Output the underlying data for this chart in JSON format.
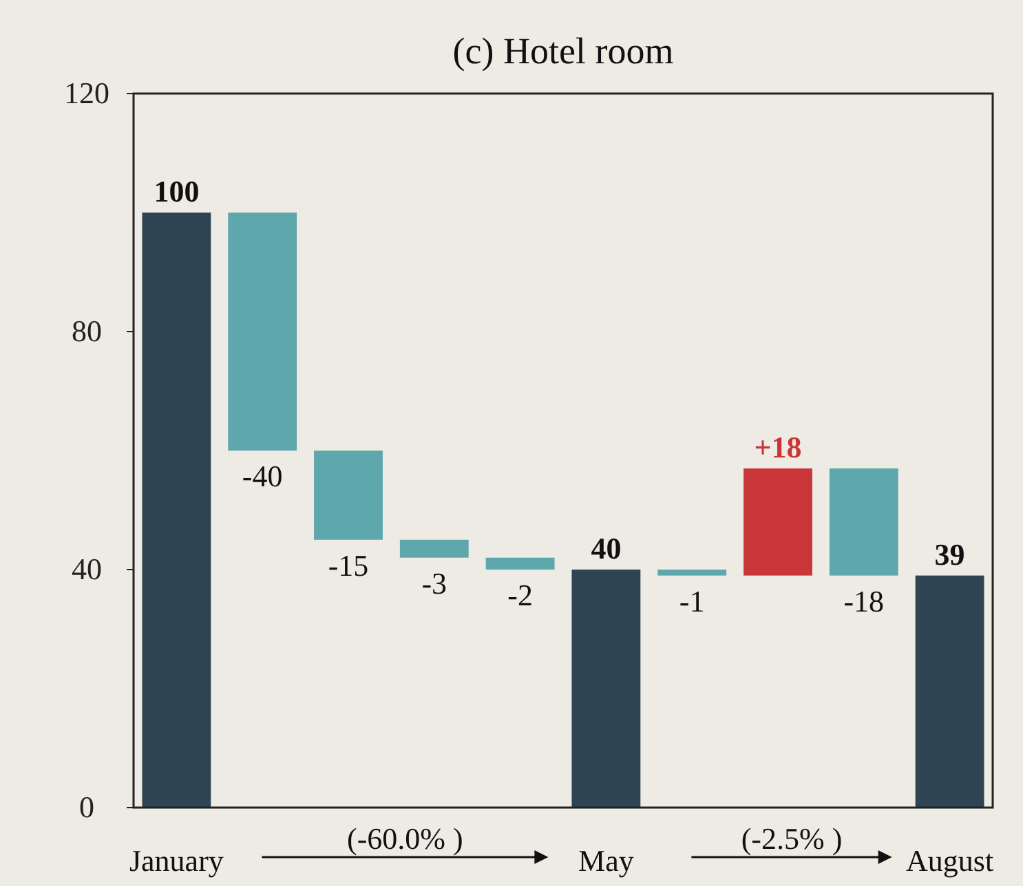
{
  "chart_data": {
    "type": "bar",
    "title": "(c) Hotel room",
    "categories": [
      "January",
      null,
      null,
      null,
      null,
      "May",
      null,
      null,
      null,
      "August"
    ],
    "values": [
      100,
      -40,
      -15,
      -3,
      -2,
      40,
      -1,
      18,
      -18,
      39
    ],
    "base": [
      0,
      100,
      60,
      45,
      42,
      0,
      40,
      39,
      57,
      0
    ],
    "colors": [
      "#2e4452",
      "#5ea7ad",
      "#5ea7ad",
      "#5ea7ad",
      "#5ea7ad",
      "#2e4452",
      "#5ea7ad",
      "#c8363a",
      "#5ea7ad",
      "#2e4452"
    ],
    "value_labels": [
      "100",
      "-40",
      "-15",
      "-3",
      "-2",
      "40",
      "-1",
      "+18",
      "-18",
      "39"
    ],
    "annotations": [
      "(-60.0% )",
      "(-2.5% )"
    ],
    "ylim": [
      0,
      120
    ],
    "yticks": [
      0,
      40,
      80,
      120
    ],
    "grid": false
  }
}
